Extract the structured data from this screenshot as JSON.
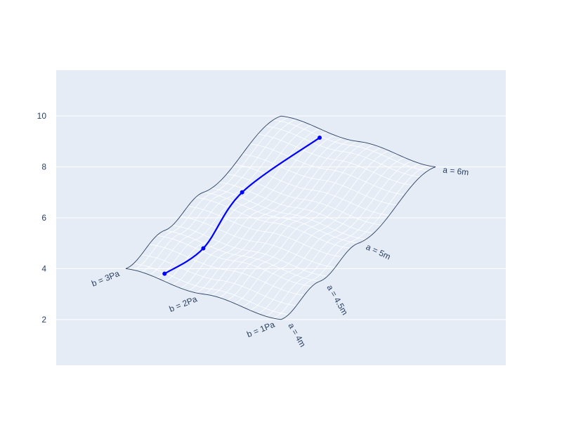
{
  "chart_data": {
    "type": "carpet",
    "title": "",
    "xlabel": "",
    "ylabel": "",
    "ylim": [
      0.2,
      11.8
    ],
    "yticks": [
      2,
      4,
      6,
      8,
      10
    ],
    "grid": true,
    "legend": "none",
    "a_axis": {
      "values": [
        4,
        4.5,
        5,
        6
      ],
      "labels": [
        "a = 4m",
        "a = 4.5m",
        "a = 5m",
        "a = 6m"
      ]
    },
    "b_axis": {
      "values": [
        1,
        2,
        3
      ],
      "labels": [
        "b = 1Pa",
        "b = 2Pa",
        "b = 3Pa"
      ]
    },
    "surface": {
      "a_params": [
        4,
        4.5,
        5,
        6
      ],
      "b_params": [
        1,
        2,
        3
      ],
      "y_grid": [
        [
          2,
          3,
          4
        ],
        [
          3.5,
          4.5,
          5.5
        ],
        [
          5,
          6,
          7
        ],
        [
          8,
          9,
          10
        ]
      ]
    },
    "series": [
      {
        "type": "line-with-markers",
        "points": [
          {
            "a": 4,
            "b": 2.5,
            "y": 3.8
          },
          {
            "a": 4.5,
            "b": 2.5,
            "y": 4.8
          },
          {
            "a": 5,
            "b": 2.5,
            "y": 7.0
          },
          {
            "a": 6,
            "b": 2.5,
            "y": 9.15
          }
        ]
      }
    ],
    "colors": {
      "plot_bg": "#E5ECF6",
      "gridline": "#FFFFFF",
      "surface_border": "#2A3F5F",
      "surface_minor": "#FFFFFF",
      "series": "#0000FF",
      "text": "#2A3F5F"
    }
  }
}
